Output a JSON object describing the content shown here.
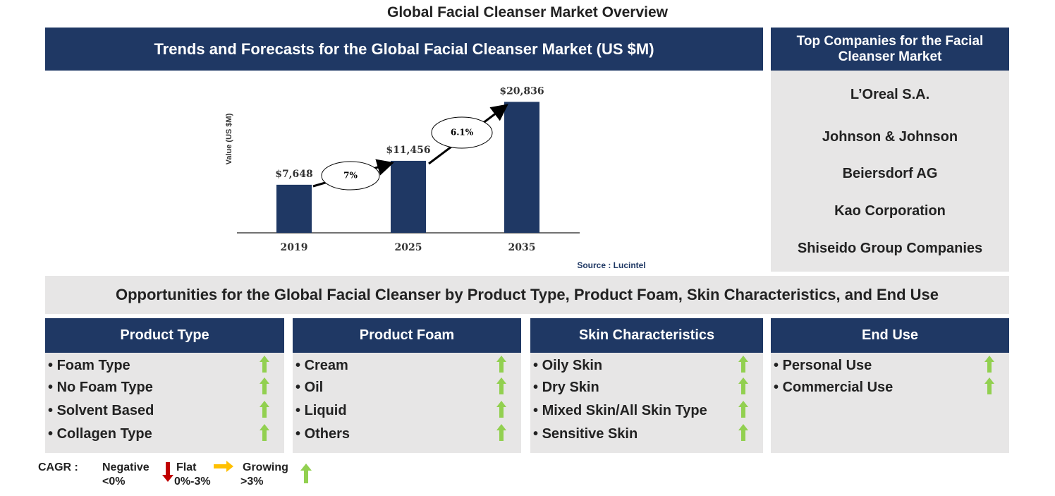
{
  "title": "Global Facial Cleanser Market Overview",
  "chart_panel": {
    "heading": "Trends and Forecasts for the Global Facial Cleanser Market (US $M)"
  },
  "chart_data": {
    "type": "bar",
    "y_label": "Value (US $M)",
    "categories": [
      "2019",
      "2025",
      "2035"
    ],
    "values": [
      7648,
      11456,
      20836
    ],
    "value_labels": [
      "$7,648",
      "$11,456",
      "$20,836"
    ],
    "color": "#1f3864",
    "ylim": [
      0,
      22000
    ],
    "cagr_labels": [
      "7%",
      "6.1%"
    ],
    "source": "Source : Lucintel"
  },
  "companies": {
    "heading": "Top Companies for the Facial Cleanser Market",
    "items": [
      "L’Oreal S.A.",
      "Johnson & Johnson",
      "Beiersdorf AG",
      "Kao Corporation",
      "Shiseido Group Companies"
    ]
  },
  "opportunities": {
    "heading": "Opportunities for the Global Facial Cleanser by Product Type, Product Foam, Skin Characteristics, and End Use",
    "columns": [
      {
        "heading": "Product Type",
        "items": [
          "Foam Type",
          "No Foam Type",
          "Solvent Based",
          "Collagen Type"
        ]
      },
      {
        "heading": "Product Foam",
        "items": [
          "Cream",
          "Oil",
          "Liquid",
          "Others"
        ]
      },
      {
        "heading": "Skin Characteristics",
        "items": [
          "Oily Skin",
          "Dry Skin",
          "Mixed Skin/All Skin Type",
          "Sensitive Skin"
        ]
      },
      {
        "heading": "End Use",
        "items": [
          "Personal Use",
          "Commercial Use"
        ]
      }
    ]
  },
  "legend": {
    "label": "CAGR :",
    "negative": "Negative",
    "negative_range": "<0%",
    "flat": "Flat",
    "flat_range": "0%-3%",
    "growing": "Growing",
    "growing_range": ">3%"
  }
}
